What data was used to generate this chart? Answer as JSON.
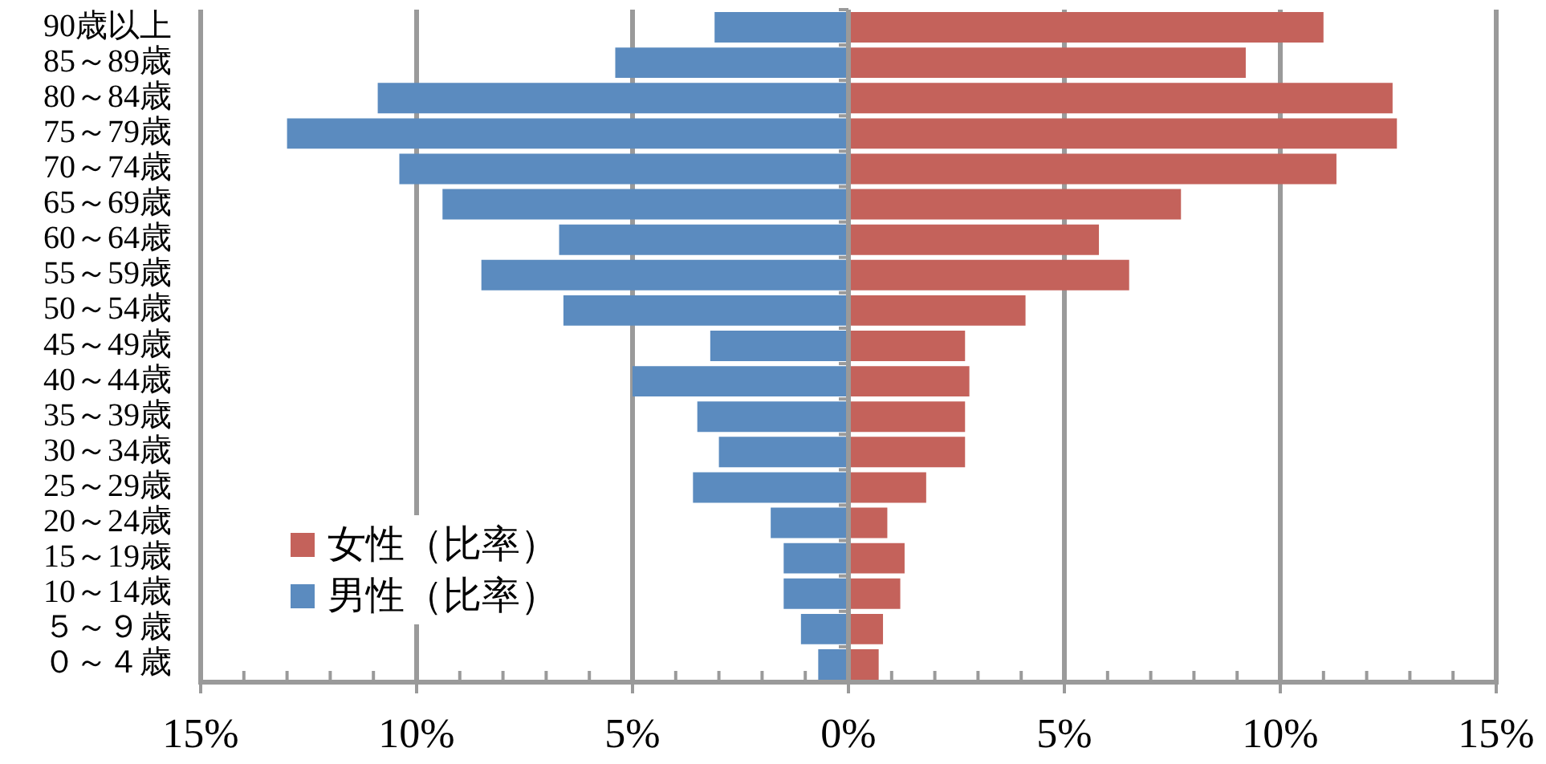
{
  "chart_data": {
    "type": "bar",
    "orientation": "horizontal",
    "stacked": true,
    "categories": [
      "90歳以上",
      "85～89歳",
      "80～84歳",
      "75～79歳",
      "70～74歳",
      "65～69歳",
      "60～64歳",
      "55～59歳",
      "50～54歳",
      "45～49歳",
      "40～44歳",
      "35～39歳",
      "30～34歳",
      "25～29歳",
      "20～24歳",
      "15～19歳",
      "10～14歳",
      "５～９歳",
      "０～４歳"
    ],
    "series": [
      {
        "name": "女性（比率）",
        "color": "#c4625b",
        "values": [
          11.0,
          9.2,
          12.6,
          12.7,
          11.3,
          7.7,
          5.8,
          6.5,
          4.1,
          2.7,
          2.8,
          2.7,
          2.7,
          1.8,
          0.9,
          1.3,
          1.2,
          0.8,
          0.7
        ]
      },
      {
        "name": "男性（比率）",
        "color": "#5b8bbf",
        "values": [
          -3.1,
          -5.4,
          -10.9,
          -13.0,
          -10.4,
          -9.4,
          -6.7,
          -8.5,
          -6.6,
          -3.2,
          -5.0,
          -3.5,
          -3.0,
          -3.6,
          -1.8,
          -1.5,
          -1.5,
          -1.1,
          -0.7
        ]
      }
    ],
    "xlim": [
      -15,
      15
    ],
    "xticks": [
      {
        "value": -15,
        "label": "15%"
      },
      {
        "value": -14,
        "label": null
      },
      {
        "value": -13,
        "label": null
      },
      {
        "value": -12,
        "label": null
      },
      {
        "value": -11,
        "label": null
      },
      {
        "value": -10,
        "label": "10%"
      },
      {
        "value": -9,
        "label": null
      },
      {
        "value": -8,
        "label": null
      },
      {
        "value": -7,
        "label": null
      },
      {
        "value": -6,
        "label": null
      },
      {
        "value": -5,
        "label": "5%"
      },
      {
        "value": -4,
        "label": null
      },
      {
        "value": -3,
        "label": null
      },
      {
        "value": -2,
        "label": null
      },
      {
        "value": -1,
        "label": null
      },
      {
        "value": 0,
        "label": "0%"
      },
      {
        "value": 1,
        "label": null
      },
      {
        "value": 2,
        "label": null
      },
      {
        "value": 3,
        "label": null
      },
      {
        "value": 4,
        "label": null
      },
      {
        "value": 5,
        "label": "5%"
      },
      {
        "value": 6,
        "label": null
      },
      {
        "value": 7,
        "label": null
      },
      {
        "value": 8,
        "label": null
      },
      {
        "value": 9,
        "label": null
      },
      {
        "value": 10,
        "label": "10%"
      },
      {
        "value": 11,
        "label": null
      },
      {
        "value": 12,
        "label": null
      },
      {
        "value": 13,
        "label": null
      },
      {
        "value": 14,
        "label": null
      },
      {
        "value": 15,
        "label": "15%"
      }
    ],
    "grid": "x",
    "legend": "bottom left"
  }
}
